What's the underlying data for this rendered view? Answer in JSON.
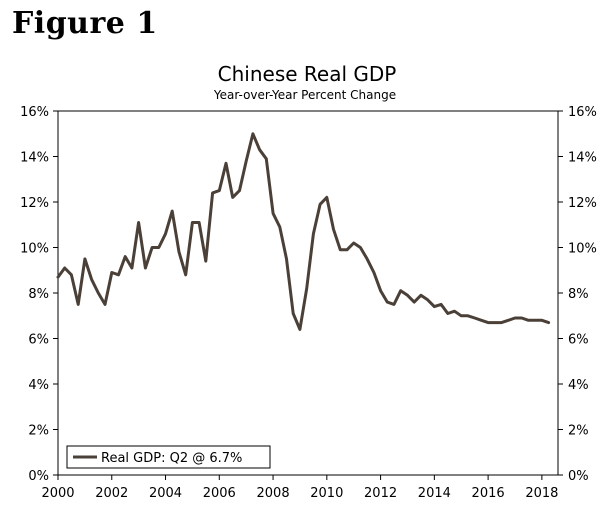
{
  "figure_label": "Figure 1",
  "chart_data": {
    "type": "line",
    "title": "Chinese Real GDP",
    "subtitle": "Year-over-Year Percent Change",
    "xlabel": "",
    "ylabel": "",
    "xlim": [
      2000,
      2018.6
    ],
    "ylim": [
      0,
      16
    ],
    "x_ticks": [
      2000,
      2002,
      2004,
      2006,
      2008,
      2010,
      2012,
      2014,
      2016,
      2018
    ],
    "x_tick_labels": [
      "2000",
      "2002",
      "2004",
      "2006",
      "2008",
      "2010",
      "2012",
      "2014",
      "2016",
      "2018"
    ],
    "y_ticks": [
      0,
      2,
      4,
      6,
      8,
      10,
      12,
      14,
      16
    ],
    "y_tick_labels_left": [
      "0%",
      "2%",
      "4%",
      "6%",
      "8%",
      "10%",
      "12%",
      "14%",
      "16%"
    ],
    "y_tick_labels_right": [
      "0%",
      "2%",
      "4%",
      "6%",
      "8%",
      "10%",
      "12%",
      "14%",
      "16%"
    ],
    "legend": {
      "label": "Real GDP: Q2 @ 6.7%",
      "position": "bottom-left"
    },
    "line_color": "#4a4038",
    "series": [
      {
        "name": "Real GDP: Q2 @ 6.7%",
        "x": [
          2000.0,
          2000.25,
          2000.5,
          2000.75,
          2001.0,
          2001.25,
          2001.5,
          2001.75,
          2002.0,
          2002.25,
          2002.5,
          2002.75,
          2003.0,
          2003.25,
          2003.5,
          2003.75,
          2004.0,
          2004.25,
          2004.5,
          2004.75,
          2005.0,
          2005.25,
          2005.5,
          2005.75,
          2006.0,
          2006.25,
          2006.5,
          2006.75,
          2007.0,
          2007.25,
          2007.5,
          2007.75,
          2008.0,
          2008.25,
          2008.5,
          2008.75,
          2009.0,
          2009.25,
          2009.5,
          2009.75,
          2010.0,
          2010.25,
          2010.5,
          2010.75,
          2011.0,
          2011.25,
          2011.5,
          2011.75,
          2012.0,
          2012.25,
          2012.5,
          2012.75,
          2013.0,
          2013.25,
          2013.5,
          2013.75,
          2014.0,
          2014.25,
          2014.5,
          2014.75,
          2015.0,
          2015.25,
          2015.5,
          2015.75,
          2016.0,
          2016.25,
          2016.5,
          2016.75,
          2017.0,
          2017.25,
          2017.5,
          2017.75,
          2018.0,
          2018.25
        ],
        "values": [
          8.7,
          9.1,
          8.8,
          7.5,
          9.5,
          8.6,
          8.0,
          7.5,
          8.9,
          8.8,
          9.6,
          9.1,
          11.1,
          9.1,
          10.0,
          10.0,
          10.6,
          11.6,
          9.8,
          8.8,
          11.1,
          11.1,
          9.4,
          12.4,
          12.5,
          13.7,
          12.2,
          12.5,
          13.8,
          15.0,
          14.3,
          13.9,
          11.5,
          10.9,
          9.5,
          7.1,
          6.4,
          8.2,
          10.6,
          11.9,
          12.2,
          10.8,
          9.9,
          9.9,
          10.2,
          10.0,
          9.5,
          8.9,
          8.1,
          7.6,
          7.5,
          8.1,
          7.9,
          7.6,
          7.9,
          7.7,
          7.4,
          7.5,
          7.1,
          7.2,
          7.0,
          7.0,
          6.9,
          6.8,
          6.7,
          6.7,
          6.7,
          6.8,
          6.9,
          6.9,
          6.8,
          6.8,
          6.8,
          6.7
        ]
      }
    ]
  }
}
